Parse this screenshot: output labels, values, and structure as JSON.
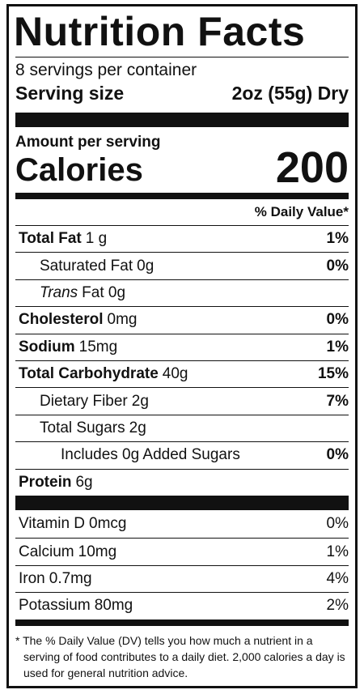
{
  "title": "Nutrition Facts",
  "servings": "8 servings per container",
  "serving_size_label": "Serving size",
  "serving_size_value": "2oz (55g) Dry",
  "amount_per_serving": "Amount per serving",
  "calories_label": "Calories",
  "calories_value": "200",
  "daily_value_header": "% Daily Value*",
  "nutrients": [
    {
      "name": "Total Fat",
      "amount": "1 g",
      "dv": "1%",
      "bold": true,
      "indent": 0
    },
    {
      "name": "Saturated Fat",
      "amount": "0g",
      "dv": "0%",
      "bold": false,
      "indent": 1
    },
    {
      "name": "Trans",
      "amount": "Fat 0g",
      "bold": false,
      "italic": true,
      "indent": 1
    },
    {
      "name": "Cholesterol",
      "amount": "0mg",
      "dv": "0%",
      "bold": true,
      "indent": 0
    },
    {
      "name": "Sodium",
      "amount": "15mg",
      "dv": "1%",
      "bold": true,
      "indent": 0
    },
    {
      "name": "Total Carbohydrate",
      "amount": "40g",
      "dv": "15%",
      "bold": true,
      "indent": 0
    },
    {
      "name": "Dietary Fiber",
      "amount": "2g",
      "dv": "7%",
      "bold": false,
      "indent": 1
    },
    {
      "name": "Total Sugars",
      "amount": "2g",
      "bold": false,
      "indent": 1
    },
    {
      "name": "Includes 0g Added Sugars",
      "dv": "0%",
      "bold": false,
      "indent": 2
    },
    {
      "name": "Protein",
      "amount": "6g",
      "bold": true,
      "indent": 0
    }
  ],
  "vitamins": [
    {
      "name": "Vitamin D",
      "amount": "0mcg",
      "dv": "0%"
    },
    {
      "name": "Calcium",
      "amount": "10mg",
      "dv": "1%"
    },
    {
      "name": "Iron",
      "amount": "0.7mg",
      "dv": "4%"
    },
    {
      "name": "Potassium",
      "amount": "80mg",
      "dv": "2%"
    }
  ],
  "footnote": "* The % Daily Value (DV) tells you how much a nutrient in a serving of food contributes to a daily diet. 2,000 calories a day is used for general nutrition advice."
}
